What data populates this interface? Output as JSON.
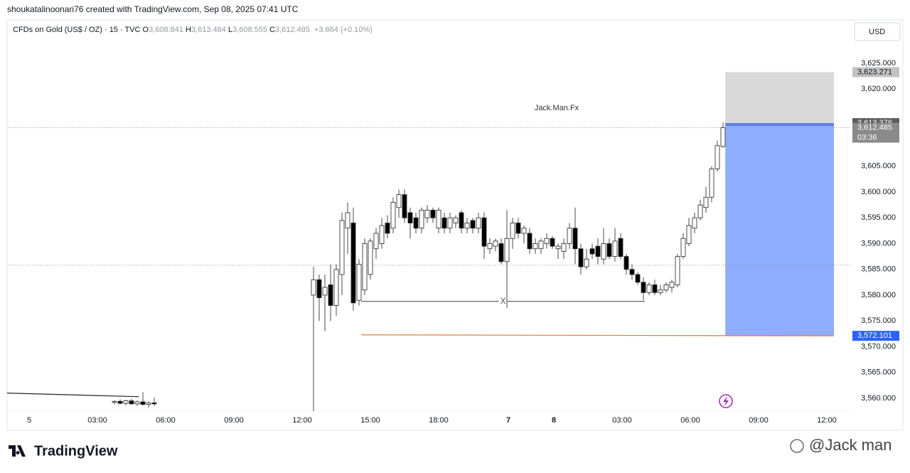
{
  "header": {
    "credit": "shoukatalinoonari76 created with TradingView.com, Sep 08, 2025 07:41 UTC"
  },
  "chart_data": {
    "type": "candlestick",
    "symbol": "CFDs on Gold (US$ / OZ) · 15 · TVC",
    "ohlc": [
      {
        "key": "O",
        "text": "3,608.841"
      },
      {
        "key": "H",
        "text": "3,613.484"
      },
      {
        "key": "L",
        "text": "3,608.555"
      },
      {
        "key": "C",
        "text": "3,612.485"
      }
    ],
    "change": "+3.664 (+0.10%)",
    "currency": "USD",
    "watermark": "Jack.Man.Fx",
    "up_color": "#ffffff",
    "down_color": "#000000",
    "wick_color": "#4a4a4a",
    "grid": false,
    "x": [
      19,
      20,
      21,
      22,
      23,
      24,
      25,
      26,
      54,
      55,
      56,
      57,
      58,
      59,
      60,
      61,
      62,
      63,
      64,
      65,
      66,
      67,
      68,
      69,
      70,
      71,
      72,
      73,
      74,
      75,
      76,
      77,
      78,
      79,
      80,
      81,
      82,
      83,
      84,
      85,
      86,
      87,
      88,
      89,
      90,
      91,
      92,
      93,
      94,
      95,
      96,
      97,
      98,
      99,
      100,
      101,
      102,
      103,
      104,
      105,
      106,
      107,
      108,
      109,
      110,
      111,
      112,
      113,
      114,
      115,
      116,
      117,
      118,
      119,
      120,
      121,
      122,
      123,
      124,
      125,
      126
    ],
    "open": [
      3559.2,
      3559.4,
      3559.0,
      3559.5,
      3558.9,
      3559.3,
      3558.8,
      3559.1,
      3580,
      3583,
      3580,
      3582,
      3578,
      3584,
      3593,
      3594,
      3579,
      3581,
      3584,
      3589,
      3590,
      3594,
      3593,
      3597,
      3599.5,
      3596,
      3595,
      3593,
      3595,
      3596.5,
      3593,
      3595,
      3593,
      3594,
      3596,
      3593,
      3594.5,
      3593,
      3595,
      3589,
      3589.5,
      3590,
      3586.5,
      3591,
      3594,
      3592,
      3592,
      3589,
      3589,
      3590,
      3591,
      3589,
      3588.5,
      3590,
      3593,
      3589,
      3585.5,
      3589,
      3589.5,
      3587,
      3590,
      3587.5,
      3591,
      3587.5,
      3585,
      3584,
      3582.5,
      3580.5,
      3582,
      3580.5,
      3581,
      3581.5,
      3582,
      3587.5,
      3590,
      3593,
      3595,
      3597,
      3599,
      3604.5,
      3608.841
    ],
    "high": [
      3559.6,
      3559.8,
      3559.7,
      3559.9,
      3559.6,
      3561.2,
      3559.4,
      3560.1,
      3585.5,
      3584,
      3584,
      3586,
      3586,
      3596,
      3598,
      3597,
      3587,
      3591,
      3591,
      3593,
      3595,
      3595.5,
      3599,
      3600.5,
      3600.5,
      3597,
      3596,
      3597,
      3597.5,
      3597,
      3597,
      3596,
      3596,
      3595.5,
      3596.5,
      3595,
      3595,
      3596,
      3596,
      3591,
      3591,
      3591,
      3596.5,
      3595,
      3595,
      3593.5,
      3593,
      3591,
      3591,
      3592,
      3591.5,
      3590,
      3591,
      3594,
      3597,
      3590,
      3589,
      3590,
      3591,
      3593,
      3591,
      3593,
      3592,
      3588,
      3586,
      3584.5,
      3583.5,
      3582.5,
      3583,
      3582,
      3582.5,
      3583,
      3588,
      3592,
      3595,
      3596,
      3598.5,
      3601,
      3605,
      3610,
      3613.484
    ],
    "low": [
      3558.8,
      3558.9,
      3558.6,
      3558.8,
      3558.5,
      3558.6,
      3558.2,
      3558.5,
      3557.5,
      3575,
      3573,
      3575,
      3576,
      3580,
      3588,
      3577,
      3578,
      3580,
      3583,
      3587,
      3589,
      3591,
      3592,
      3595,
      3594,
      3591,
      3592,
      3592,
      3594,
      3594,
      3592,
      3592,
      3592,
      3593,
      3592,
      3592,
      3592,
      3592,
      3587,
      3588,
      3588.5,
      3586,
      3577.5,
      3589,
      3591,
      3590,
      3588,
      3588,
      3588,
      3589,
      3589,
      3587,
      3587,
      3589,
      3586,
      3584,
      3585,
      3587,
      3586,
      3586,
      3587,
      3586.5,
      3587,
      3584,
      3583,
      3582,
      3579,
      3580,
      3580,
      3580,
      3580.5,
      3580.5,
      3581.5,
      3587,
      3589.5,
      3592,
      3594.5,
      3596,
      3598,
      3604,
      3608.555
    ],
    "close": [
      3559.4,
      3559.0,
      3559.5,
      3558.9,
      3559.3,
      3558.8,
      3559.1,
      3558.9,
      3583,
      3579.5,
      3581.5,
      3578,
      3585,
      3594.5,
      3596,
      3578.5,
      3586,
      3590,
      3590.5,
      3592,
      3593.5,
      3592,
      3598,
      3599.5,
      3595,
      3594,
      3593,
      3596.5,
      3596.5,
      3595,
      3596.5,
      3593,
      3595,
      3595,
      3593,
      3594,
      3593,
      3595,
      3589.5,
      3590,
      3590.5,
      3586.5,
      3591,
      3594,
      3592,
      3593,
      3589,
      3590,
      3590.5,
      3591,
      3589.5,
      3589.5,
      3590,
      3593,
      3589,
      3585.5,
      3587,
      3588,
      3587.5,
      3590,
      3587.5,
      3590.5,
      3587.5,
      3585,
      3584,
      3582.5,
      3580.5,
      3582,
      3580.5,
      3581,
      3582,
      3582.5,
      3587.5,
      3591,
      3593.5,
      3595,
      3597.5,
      3599,
      3604.5,
      3609,
      3612.485
    ],
    "xlim": [
      0,
      148.5
    ],
    "ylim": [
      3557.5,
      3633.4
    ],
    "yticks": [
      {
        "value": 3625,
        "label": "3,625.000"
      },
      {
        "value": 3620,
        "label": "3,620.000"
      },
      {
        "value": 3605,
        "label": "3,605.000"
      },
      {
        "value": 3600,
        "label": "3,600.000"
      },
      {
        "value": 3595,
        "label": "3,595.000"
      },
      {
        "value": 3590,
        "label": "3,590.000"
      },
      {
        "value": 3585,
        "label": "3,585.000"
      },
      {
        "value": 3580,
        "label": "3,580.000"
      },
      {
        "value": 3575,
        "label": "3,575.000"
      },
      {
        "value": 3570,
        "label": "3,570.000"
      },
      {
        "value": 3565,
        "label": "3,565.000"
      },
      {
        "value": 3560,
        "label": "3,560.000"
      }
    ],
    "xticks": [
      {
        "value": 4,
        "label": "5"
      },
      {
        "value": 16,
        "label": "03:00"
      },
      {
        "value": 28,
        "label": "06:00"
      },
      {
        "value": 40,
        "label": "09:00"
      },
      {
        "value": 52,
        "label": "12:00"
      },
      {
        "value": 64,
        "label": "15:00"
      },
      {
        "value": 76,
        "label": "18:00"
      },
      {
        "value": 88.25,
        "label": "7"
      },
      {
        "value": 96.25,
        "label": "8"
      },
      {
        "value": 108.25,
        "label": "03:00"
      },
      {
        "value": 120.25,
        "label": "06:00"
      },
      {
        "value": 132.25,
        "label": "09:00"
      },
      {
        "value": 144.25,
        "label": "12:00"
      }
    ],
    "last_price": {
      "value": 3612.485,
      "label": "3,612.485"
    },
    "countdown": "03:36",
    "prev_close_line": 3585.8,
    "long_position": {
      "x": [
        126.4,
        145.5
      ],
      "target": {
        "value": 3623.271,
        "label": "3,623.271"
      },
      "entry": {
        "value": 3613.376,
        "label": "3,613.376"
      },
      "stop": {
        "value": 3572.101,
        "label": "3,572.101"
      }
    },
    "trend_line": {
      "x": [
        0.1,
        23.3
      ],
      "y": [
        3561.0,
        3560.3
      ]
    },
    "x_line": {
      "x": [
        62.4,
        112.25
      ],
      "y": [
        3578.8,
        3578.8
      ],
      "label": "X"
    },
    "orange_line": {
      "x": [
        62.4,
        145.5
      ],
      "y": [
        3572.3,
        3572.101
      ]
    }
  },
  "footer": {
    "logo": "TradingView",
    "watermark": "@Jack man"
  }
}
